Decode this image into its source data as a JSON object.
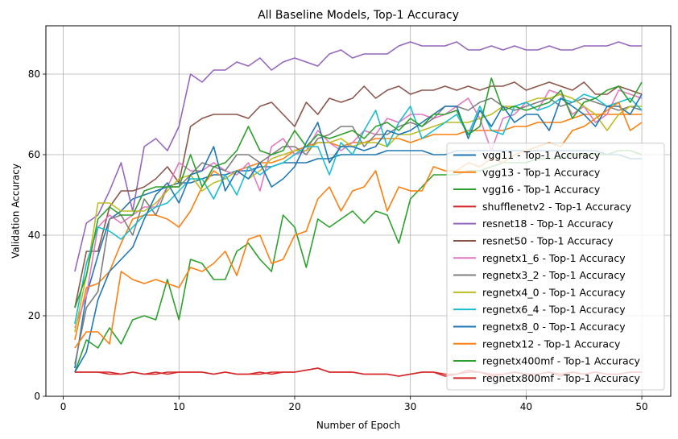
{
  "chart_data": {
    "type": "line",
    "title": "All Baseline Models, Top-1 Accuracy",
    "xlabel": "Number of Epoch",
    "ylabel": "Validation Accuracy",
    "xlim": [
      -1.5,
      52.5
    ],
    "ylim": [
      0,
      92
    ],
    "xticks": [
      0,
      10,
      20,
      30,
      40,
      50
    ],
    "yticks": [
      0,
      20,
      40,
      60,
      80
    ],
    "grid": true,
    "legend_position": "lower-right",
    "x": [
      1,
      2,
      3,
      4,
      5,
      6,
      7,
      8,
      9,
      10,
      11,
      12,
      13,
      14,
      15,
      16,
      17,
      18,
      19,
      20,
      21,
      22,
      23,
      24,
      25,
      26,
      27,
      28,
      29,
      30,
      31,
      32,
      33,
      34,
      35,
      36,
      37,
      38,
      39,
      40,
      41,
      42,
      43,
      44,
      45,
      46,
      47,
      48,
      49,
      50
    ],
    "series": [
      {
        "name": "vgg11 - Top-1 Accuracy",
        "color": "#1f77b4",
        "values": [
          7,
          25,
          35,
          44,
          46,
          49,
          50,
          51,
          52,
          53,
          53,
          54,
          55,
          55,
          56,
          56,
          57,
          57,
          58,
          58,
          58,
          59,
          59,
          60,
          60,
          60,
          60,
          61,
          61,
          61,
          61,
          60,
          60,
          61,
          61,
          61,
          61,
          61,
          61,
          61,
          61,
          61,
          61,
          61,
          61,
          61,
          60,
          60,
          59,
          59
        ]
      },
      {
        "name": "vgg13 - Top-1 Accuracy",
        "color": "#ff7f0e",
        "values": [
          14,
          27,
          28,
          31,
          38,
          44,
          45,
          45,
          44,
          42,
          46,
          52,
          56,
          54,
          56,
          57,
          58,
          58,
          59,
          61,
          62,
          63,
          63,
          62,
          63,
          63,
          64,
          64,
          64,
          63,
          64,
          65,
          65,
          65,
          66,
          66,
          66,
          66,
          67,
          67,
          68,
          68,
          68,
          69,
          70,
          70,
          70,
          70,
          70,
          70
        ]
      },
      {
        "name": "vgg16 - Top-1 Accuracy",
        "color": "#2ca02c",
        "values": [
          6,
          14,
          12,
          17,
          13,
          19,
          20,
          19,
          29,
          19,
          34,
          33,
          29,
          29,
          36,
          38,
          34,
          31,
          45,
          42,
          32,
          44,
          42,
          44,
          46,
          43,
          46,
          45,
          38,
          49,
          52,
          55,
          55,
          55,
          56,
          56,
          57,
          58,
          58,
          58,
          59,
          59,
          59,
          60,
          60,
          60,
          60,
          61,
          61,
          60
        ]
      },
      {
        "name": "shufflenetv2 - Top-1 Accuracy",
        "color": "#d62728",
        "values": [
          6,
          6,
          6,
          5.5,
          5.5,
          6,
          5.5,
          5.5,
          6,
          6,
          6,
          6,
          5.5,
          6,
          5.5,
          5.5,
          5.5,
          6,
          6,
          6,
          6.5,
          7,
          6,
          6,
          6,
          5.5,
          5.5,
          5.5,
          5,
          5.5,
          6,
          6,
          5,
          5.5,
          6.5,
          6,
          5,
          5.5,
          6,
          5.5,
          5.5,
          6,
          5,
          6,
          5.5,
          6,
          5.5,
          5.5,
          6,
          6
        ]
      },
      {
        "name": "resnet18 - Top-1 Accuracy",
        "color": "#9467bd",
        "values": [
          31,
          43,
          45,
          51,
          58,
          46,
          62,
          64,
          61,
          67,
          80,
          78,
          81,
          81,
          83,
          82,
          84,
          81,
          83,
          84,
          83,
          82,
          85,
          86,
          84,
          85,
          85,
          85,
          87,
          88,
          87,
          87,
          87,
          88,
          86,
          86,
          87,
          86,
          87,
          86,
          86,
          87,
          86,
          86,
          87,
          87,
          87,
          88,
          87,
          87
        ]
      },
      {
        "name": "resnet50 - Top-1 Accuracy",
        "color": "#8c564b",
        "values": [
          22,
          36,
          36,
          47,
          51,
          51,
          52,
          54,
          57,
          53,
          67,
          69,
          70,
          70,
          70,
          69,
          72,
          73,
          70,
          67,
          73,
          70,
          74,
          73,
          74,
          77,
          74,
          76,
          77,
          75,
          76,
          76,
          77,
          76,
          77,
          76,
          77,
          77,
          78,
          76,
          77,
          78,
          77,
          76,
          78,
          75,
          75,
          77,
          76,
          75
        ]
      },
      {
        "name": "regnetx1_6 - Top-1 Accuracy",
        "color": "#e377c2",
        "values": [
          17,
          25,
          42,
          45,
          43,
          45,
          47,
          47,
          52,
          58,
          56,
          56,
          58,
          56,
          55,
          58,
          51,
          62,
          64,
          60,
          61,
          66,
          63,
          61,
          63,
          66,
          65,
          69,
          68,
          70,
          70,
          69,
          70,
          72,
          74,
          69,
          61,
          69,
          70,
          73,
          71,
          76,
          75,
          70,
          72,
          68,
          70,
          76,
          75,
          74
        ]
      },
      {
        "name": "regnetx3_2 - Top-1 Accuracy",
        "color": "#7f7f7f",
        "values": [
          8,
          22,
          26,
          44,
          45,
          40,
          49,
          45,
          52,
          52,
          55,
          58,
          57,
          56,
          60,
          60,
          58,
          60,
          62,
          62,
          60,
          64,
          65,
          67,
          67,
          62,
          65,
          65,
          67,
          68,
          67,
          69,
          72,
          72,
          71,
          73,
          74,
          72,
          71,
          72,
          73,
          74,
          72,
          73,
          74,
          73,
          72,
          71,
          72,
          71
        ]
      },
      {
        "name": "regnetx4_0 - Top-1 Accuracy",
        "color": "#bcbd22",
        "values": [
          16,
          30,
          48,
          48,
          46,
          46,
          46,
          48,
          51,
          54,
          55,
          51,
          53,
          54,
          56,
          54,
          56,
          59,
          60,
          61,
          61,
          63,
          63,
          64,
          62,
          63,
          63,
          62,
          65,
          65,
          66,
          67,
          68,
          68,
          68,
          69,
          70,
          72,
          72,
          73,
          74,
          74,
          75,
          74,
          72,
          70,
          66,
          70,
          72,
          72
        ]
      },
      {
        "name": "regnetx6_4 - Top-1 Accuracy",
        "color": "#17becf",
        "values": [
          18,
          33,
          42,
          41,
          39,
          42,
          45,
          47,
          48,
          51,
          54,
          54,
          49,
          55,
          50,
          57,
          55,
          57,
          58,
          60,
          62,
          62,
          55,
          63,
          60,
          66,
          71,
          62,
          68,
          72,
          64,
          66,
          68,
          70,
          65,
          72,
          66,
          65,
          72,
          73,
          71,
          72,
          74,
          73,
          75,
          74,
          72,
          73,
          74,
          71
        ]
      },
      {
        "name": "regnetx8_0 - Top-1 Accuracy",
        "color": "#1f77b4",
        "values": [
          6,
          11,
          24,
          31,
          34,
          37,
          44,
          50,
          53,
          48,
          55,
          56,
          62,
          51,
          56,
          54,
          58,
          52,
          54,
          57,
          63,
          68,
          58,
          62,
          62,
          61,
          62,
          66,
          65,
          66,
          68,
          70,
          72,
          72,
          64,
          71,
          67,
          72,
          68,
          70,
          70,
          66,
          74,
          72,
          70,
          67,
          72,
          72,
          70,
          75
        ]
      },
      {
        "name": "regnetx12 - Top-1 Accuracy",
        "color": "#ff7f0e",
        "values": [
          12,
          16,
          16,
          13,
          31,
          29,
          28,
          29,
          28,
          27,
          32,
          31,
          33,
          36,
          30,
          39,
          40,
          33,
          34,
          40,
          41,
          49,
          52,
          46,
          51,
          52,
          56,
          46,
          52,
          51,
          51,
          57,
          56,
          56,
          58,
          57,
          59,
          58,
          60,
          61,
          62,
          63,
          62,
          66,
          67,
          69,
          71,
          73,
          66,
          68
        ]
      },
      {
        "name": "regnetx400mf - Top-1 Accuracy",
        "color": "#2ca02c",
        "values": [
          22,
          30,
          44,
          47,
          45,
          45,
          51,
          52,
          52,
          52,
          60,
          52,
          57,
          58,
          61,
          67,
          61,
          60,
          61,
          66,
          62,
          65,
          64,
          65,
          66,
          64,
          67,
          68,
          66,
          69,
          67,
          70,
          70,
          71,
          65,
          67,
          79,
          71,
          72,
          71,
          72,
          73,
          76,
          69,
          73,
          74,
          76,
          77,
          73,
          78
        ]
      },
      {
        "name": "regnetx800mf - Top-1 Accuracy",
        "color": "#d62728",
        "values": [
          6,
          6,
          6,
          6,
          5.5,
          6,
          5.5,
          6,
          5.5,
          6,
          6,
          6,
          5.5,
          6,
          5.5,
          5.5,
          6,
          5.5,
          6,
          6,
          6.5,
          7,
          6,
          6,
          6,
          5.5,
          5.5,
          5.5,
          5,
          5.5,
          6,
          6,
          5.5,
          5.5,
          6,
          6,
          5.5,
          5.5,
          6,
          5.5,
          5.5,
          6,
          5.5,
          6,
          5.5,
          6,
          5.5,
          5.5,
          6,
          6
        ]
      }
    ]
  }
}
